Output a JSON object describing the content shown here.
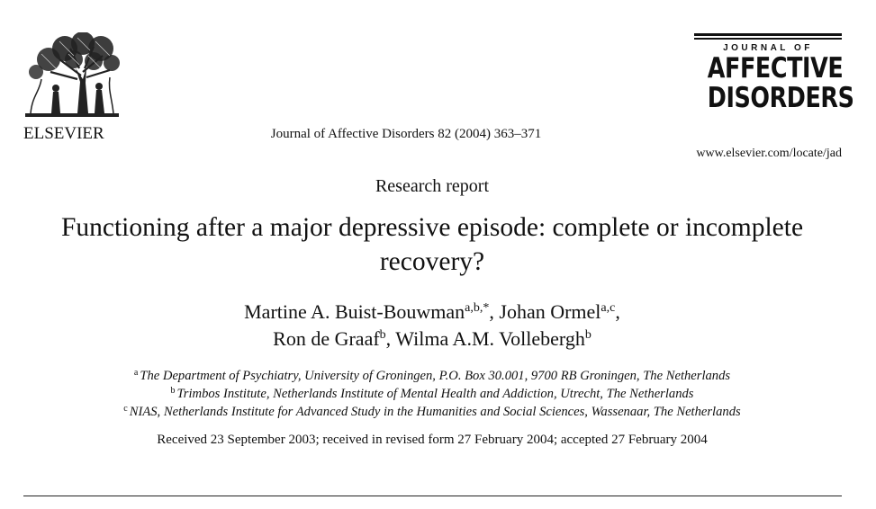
{
  "publisher": {
    "name": "ELSEVIER"
  },
  "citation": "Journal of Affective Disorders 82 (2004) 363–371",
  "masthead": {
    "journal_of": "JOURNAL OF",
    "line1": "AFFECTIVE",
    "line2": "DISORDERS"
  },
  "journal_url": "www.elsevier.com/locate/jad",
  "report_type": "Research report",
  "title": "Functioning after a major depressive episode: complete or incomplete recovery?",
  "authors": [
    {
      "name": "Martine A. Buist-Bouwman",
      "sup": "a,b,*",
      "sep": ", "
    },
    {
      "name": "Johan Ormel",
      "sup": "a,c",
      "sep": ","
    },
    {
      "name": "Ron de Graaf",
      "sup": "b",
      "sep": ", "
    },
    {
      "name": "Wilma A.M. Vollebergh",
      "sup": "b",
      "sep": ""
    }
  ],
  "affiliations": [
    {
      "mark": "a",
      "text": "The Department of Psychiatry, University of Groningen, P.O. Box 30.001, 9700 RB Groningen, The Netherlands"
    },
    {
      "mark": "b",
      "text": "Trimbos Institute, Netherlands Institute of Mental Health and Addiction, Utrecht, The Netherlands"
    },
    {
      "mark": "c",
      "text": "NIAS, Netherlands Institute for Advanced Study in the Humanities and Social Sciences, Wassenaar, The Netherlands"
    }
  ],
  "received": "Received 23 September 2003; received in revised form 27 February 2004; accepted 27 February 2004",
  "icons": {
    "publisher_logo": "elsevier-tree-icon"
  }
}
